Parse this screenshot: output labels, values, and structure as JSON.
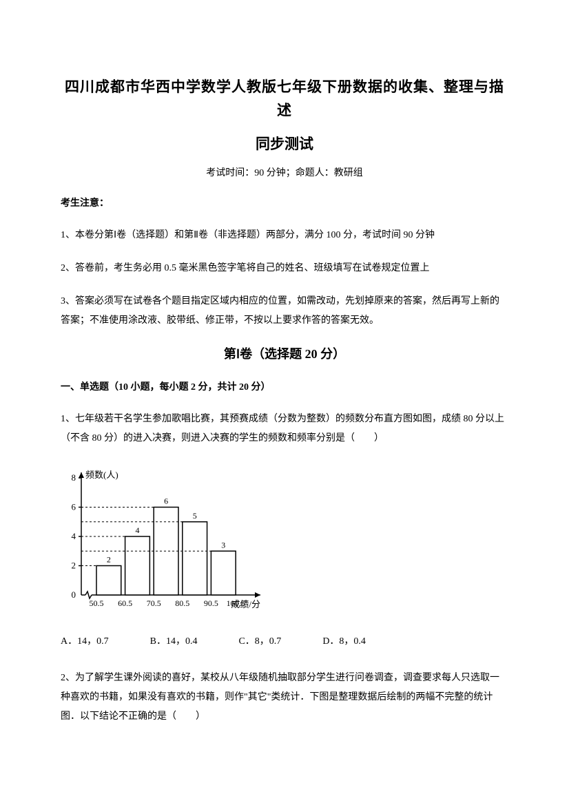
{
  "title": {
    "main": "四川成都市华西中学数学人教版七年级下册数据的收集、整理与描述",
    "sub": "同步测试"
  },
  "exam_info": "考试时间：90 分钟；命题人：教研组",
  "notice": {
    "header": "考生注意：",
    "items": [
      "1、本卷分第Ⅰ卷（选择题）和第Ⅱ卷（非选择题）两部分，满分 100 分，考试时间 90 分钟",
      "2、答卷前，考生务必用 0.5 毫米黑色签字笔将自己的姓名、班级填写在试卷规定位置上",
      "3、答案必须写在试卷各个题目指定区域内相应的位置，如需改动，先划掉原来的答案，然后再写上新的答案；不准使用涂改液、胶带纸、修正带，不按以上要求作答的答案无效。"
    ]
  },
  "section1": {
    "header": "第Ⅰ卷（选择题  20 分）",
    "subsection": "一、单选题（10 小题，每小题 2 分，共计 20 分）"
  },
  "q1": {
    "text": "1、七年级若干名学生参加歌唱比赛，其预赛成绩（分数为整数）的频数分布直方图如图，成绩 80 分以上（不含 80 分）的进入决赛，则进入决赛的学生的频数和频率分别是（　　）",
    "options": {
      "a": "A．14，0.7",
      "b": "B．14，0.4",
      "c": "C．8，0.7",
      "d": "D．8，0.4"
    }
  },
  "q2": {
    "text": "2、为了解学生课外阅读的喜好，某校从八年级随机抽取部分学生进行问卷调查，调查要求每人只选取一种喜欢的书籍，如果没有喜欢的书籍，则作\"其它\"类统计．下图是整理数据后绘制的两幅不完整的统计图．以下结论不正确的是（　　）"
  },
  "chart": {
    "type": "bar",
    "y_axis_label": "频数(人)",
    "x_axis_label": "成绩/分",
    "y_ticks": [
      0,
      2,
      4,
      6,
      8
    ],
    "y_max": 8,
    "x_labels": [
      "50.5",
      "60.5",
      "70.5",
      "80.5",
      "90.5",
      "100.5"
    ],
    "bars": [
      {
        "label": "2",
        "value": 2
      },
      {
        "label": "4",
        "value": 4
      },
      {
        "label": "6",
        "value": 6
      },
      {
        "label": "5",
        "value": 5
      },
      {
        "label": "3",
        "value": 3
      }
    ],
    "colors": {
      "axis": "#000000",
      "bar_fill": "#ffffff",
      "bar_stroke": "#000000",
      "text": "#000000",
      "grid_dash": "#000000"
    },
    "stroke_width": 1.5,
    "bar_width_ratio": 0.86,
    "font_size_axis": 13,
    "font_size_label": 12
  }
}
